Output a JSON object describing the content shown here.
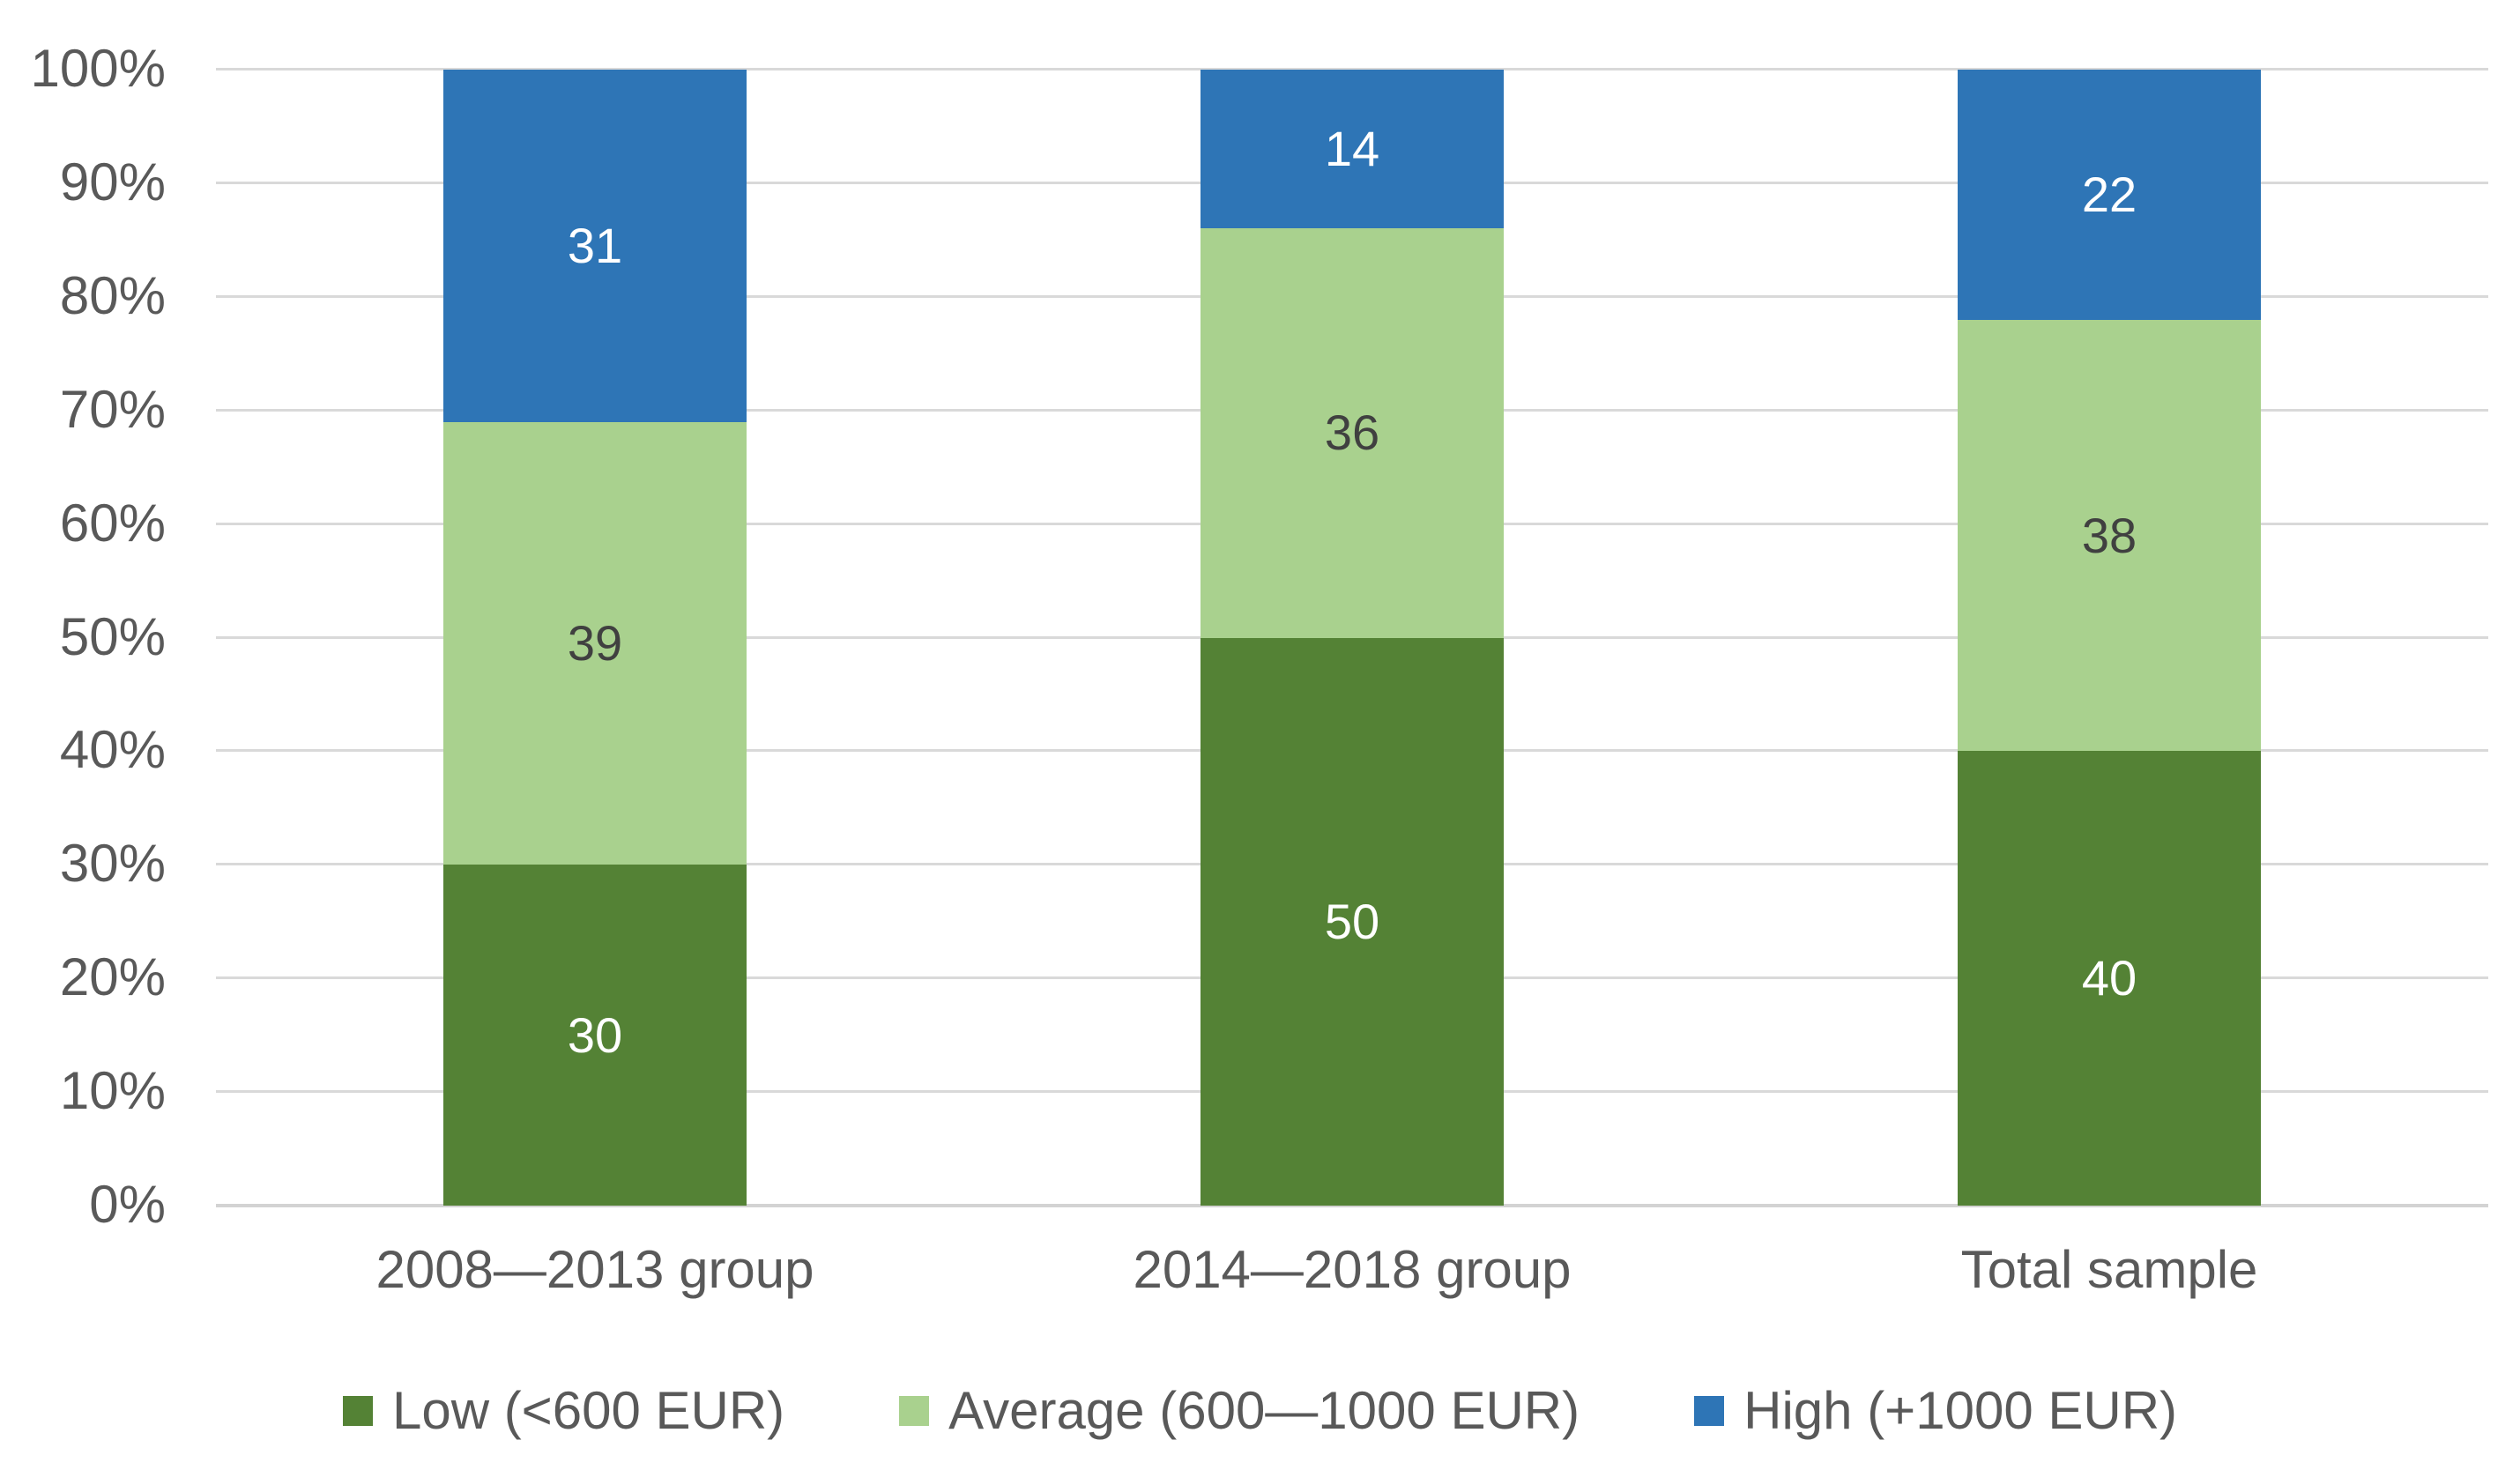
{
  "chart_data": {
    "type": "bar",
    "subtype": "100%-stacked-column",
    "title": "",
    "categories": [
      "2008—2013 group",
      "2014—2018 group",
      "Total sample"
    ],
    "series": [
      {
        "name": "Low (<600 EUR)",
        "values": [
          30,
          50,
          40
        ],
        "color": "#548235",
        "label_color": "#ffffff"
      },
      {
        "name": "Average (600—1000 EUR)",
        "values": [
          39,
          36,
          38
        ],
        "color": "#a9d18e",
        "label_color": "#404040"
      },
      {
        "name": "High (+1000 EUR)",
        "values": [
          31,
          14,
          22
        ],
        "color": "#2e75b6",
        "label_color": "#ffffff"
      }
    ],
    "y_axis": {
      "min": 0,
      "max": 100,
      "step": 10,
      "unit": "%",
      "tick_labels": [
        "0%",
        "10%",
        "20%",
        "30%",
        "40%",
        "50%",
        "60%",
        "70%",
        "80%",
        "90%",
        "100%"
      ]
    },
    "grid": "horizontal",
    "gridline_color": "#d9d9d9",
    "axis_text_color": "#595959",
    "data_labels_visible": true,
    "legend_position": "bottom",
    "background": "#ffffff"
  }
}
